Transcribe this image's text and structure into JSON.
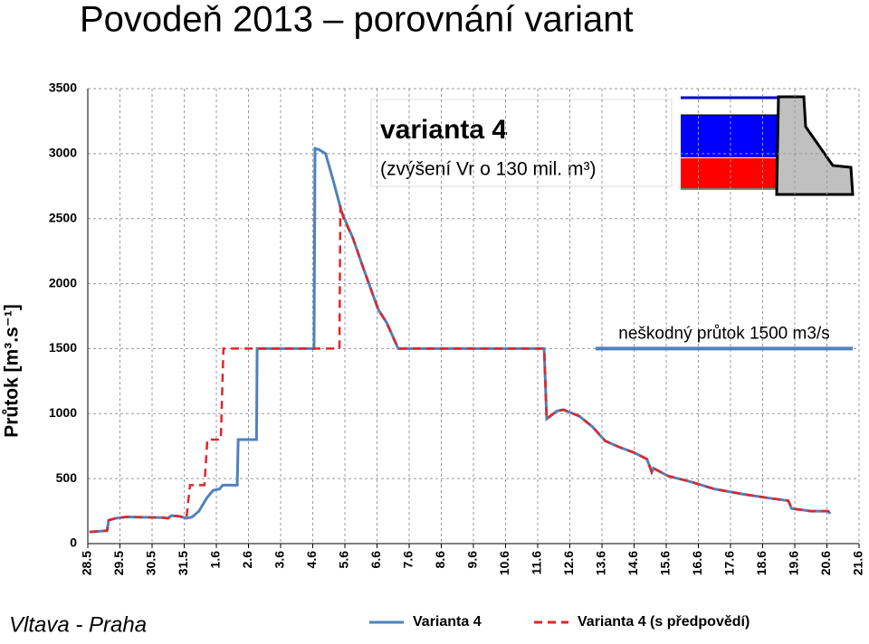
{
  "chart_data": {
    "type": "line",
    "title": "Povodeň 2013 – porovnání variant",
    "y_label": "Průtok [m³.s⁻¹]",
    "location": "Vltava - Praha",
    "annotation": {
      "title": "varianta 4",
      "text": "(zvýšení Vr o 130 mil. m³)"
    },
    "threshold": {
      "label": "neškodný průtok 1500 m3/s",
      "value": 1500,
      "color": "#4f81bd"
    },
    "grid": true,
    "xlim": [
      0,
      24
    ],
    "ylim": [
      0,
      3500
    ],
    "yticks": [
      0,
      500,
      1000,
      1500,
      2000,
      2500,
      3000,
      3500
    ],
    "xticks": [
      {
        "value": 0,
        "label": "28.5"
      },
      {
        "value": 1,
        "label": "29.5"
      },
      {
        "value": 2,
        "label": "30.5"
      },
      {
        "value": 3,
        "label": "31.5"
      },
      {
        "value": 4,
        "label": "1.6"
      },
      {
        "value": 5,
        "label": "2.6"
      },
      {
        "value": 6,
        "label": "3.6"
      },
      {
        "value": 7,
        "label": "4.6"
      },
      {
        "value": 8,
        "label": "5.6"
      },
      {
        "value": 9,
        "label": "6.6"
      },
      {
        "value": 10,
        "label": "7.6"
      },
      {
        "value": 11,
        "label": "8.6"
      },
      {
        "value": 12,
        "label": "9.6"
      },
      {
        "value": 13,
        "label": "10.6"
      },
      {
        "value": 14,
        "label": "11.6"
      },
      {
        "value": 15,
        "label": "12.6"
      },
      {
        "value": 16,
        "label": "13.6"
      },
      {
        "value": 17,
        "label": "14.6"
      },
      {
        "value": 18,
        "label": "15.6"
      },
      {
        "value": 19,
        "label": "16.6"
      },
      {
        "value": 20,
        "label": "17.6"
      },
      {
        "value": 21,
        "label": "18.6"
      },
      {
        "value": 22,
        "label": "19.6"
      },
      {
        "value": 23,
        "label": "20.6"
      },
      {
        "value": 24,
        "label": "21.6"
      }
    ],
    "series": [
      {
        "name": "Varianta 4",
        "color": "#4f81bd",
        "dash": false,
        "x": [
          0.05,
          0.37,
          0.6,
          0.65,
          0.87,
          1.2,
          2.3,
          2.5,
          2.6,
          2.85,
          3.07,
          3.25,
          3.46,
          3.7,
          3.9,
          4.1,
          4.2,
          4.65,
          4.68,
          5.25,
          5.27,
          7.04,
          7.07,
          7.2,
          7.4,
          7.63,
          7.9,
          8.25,
          8.53,
          8.82,
          9.04,
          9.3,
          9.66,
          14.2,
          14.28,
          14.6,
          14.8,
          15.0,
          15.3,
          15.7,
          16.1,
          16.56,
          17.0,
          17.4,
          17.55,
          17.6,
          18.06,
          18.7,
          19.5,
          20.4,
          21.2,
          21.8,
          21.9,
          22.5,
          23.04,
          23.1
        ],
        "values": [
          90,
          95,
          100,
          180,
          195,
          205,
          200,
          195,
          215,
          210,
          195,
          205,
          250,
          350,
          410,
          420,
          450,
          450,
          800,
          800,
          1500,
          1500,
          3040,
          3030,
          3000,
          2800,
          2550,
          2350,
          2150,
          1950,
          1800,
          1700,
          1500,
          1500,
          960,
          1020,
          1030,
          1010,
          980,
          900,
          790,
          740,
          700,
          650,
          550,
          580,
          520,
          480,
          420,
          380,
          350,
          330,
          270,
          250,
          250,
          230
        ]
      },
      {
        "name": "Varianta 4 (s předpovědí)",
        "color": "#e0262a",
        "dash": true,
        "x": [
          0.05,
          0.37,
          0.6,
          0.65,
          0.87,
          1.2,
          2.3,
          2.5,
          2.6,
          2.85,
          3.07,
          3.18,
          3.63,
          3.72,
          4.14,
          4.22,
          7.83,
          7.86,
          7.96,
          8.25,
          8.53,
          8.82,
          9.04,
          9.3,
          9.66,
          14.2,
          14.28,
          14.6,
          14.8,
          15.0,
          15.3,
          15.7,
          16.1,
          16.56,
          17.0,
          17.4,
          17.55,
          17.6,
          18.06,
          18.7,
          19.5,
          20.4,
          21.2,
          21.8,
          21.9,
          22.5,
          23.04,
          23.1
        ],
        "values": [
          90,
          95,
          100,
          180,
          195,
          205,
          200,
          195,
          215,
          210,
          200,
          450,
          450,
          800,
          800,
          1500,
          1500,
          2600,
          2500,
          2350,
          2150,
          1950,
          1800,
          1700,
          1500,
          1500,
          960,
          1020,
          1030,
          1010,
          980,
          900,
          790,
          740,
          700,
          650,
          550,
          580,
          520,
          480,
          420,
          380,
          350,
          330,
          270,
          250,
          250,
          230
        ]
      }
    ]
  }
}
